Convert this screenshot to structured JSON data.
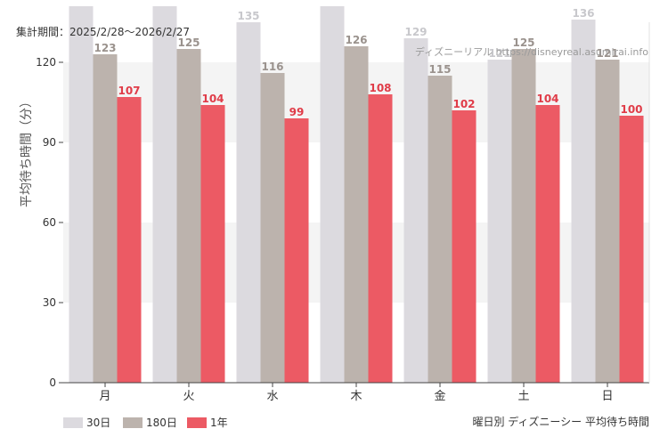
{
  "chart_data": {
    "type": "bar",
    "period_text": "集計期間：2025/2/28〜2026/2/27",
    "watermark": "ディズニーリアル https://disneyreal.asumirai.info",
    "ylabel": "平均待ち時間（分）",
    "xlabel": "",
    "footer_title": "曜日別 ディズニーシー 平均待ち時間",
    "categories": [
      "月",
      "火",
      "水",
      "木",
      "金",
      "土",
      "日"
    ],
    "ylim": [
      0,
      135
    ],
    "yticks": [
      0,
      30,
      60,
      90,
      120
    ],
    "grid": "horizontal bands",
    "legend_position": "bottom-left",
    "series": [
      {
        "name": "30日",
        "color": "#dcdadf",
        "label_color": "#c8c8cc",
        "values": [
          141,
          141,
          135,
          141,
          129,
          121,
          136
        ],
        "labels": [
          "",
          "",
          "135",
          "",
          "129",
          "121",
          "136"
        ]
      },
      {
        "name": "180日",
        "color": "#bcb3ad",
        "label_color": "#9a928d",
        "values": [
          123,
          125,
          116,
          126,
          115,
          125,
          121
        ],
        "labels": [
          "123",
          "125",
          "116",
          "126",
          "115",
          "125",
          "121"
        ]
      },
      {
        "name": "1年",
        "color": "#ec5a64",
        "label_color": "#e03c48",
        "values": [
          107,
          104,
          99,
          108,
          102,
          104,
          100
        ],
        "labels": [
          "107",
          "104",
          "99",
          "108",
          "102",
          "104",
          "100"
        ]
      }
    ]
  }
}
